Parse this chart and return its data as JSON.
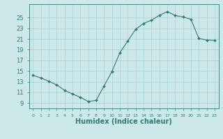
{
  "x": [
    0,
    1,
    2,
    3,
    4,
    5,
    6,
    7,
    8,
    9,
    10,
    11,
    12,
    13,
    14,
    15,
    16,
    17,
    18,
    19,
    20,
    21,
    22,
    23
  ],
  "y": [
    14.2,
    13.7,
    13.1,
    12.4,
    11.4,
    10.7,
    10.1,
    9.3,
    9.5,
    12.2,
    14.9,
    18.4,
    20.6,
    22.8,
    23.9,
    24.5,
    25.4,
    26.1,
    25.4,
    25.1,
    24.7,
    21.1,
    20.8,
    20.7
  ],
  "line_color": "#2e7d6e",
  "marker": "D",
  "marker_size": 2.0,
  "bg_color": "#cce8e8",
  "grid_color": "#aad0d0",
  "spine_color": "#2e7d6e",
  "font_color": "#2e7d6e",
  "xlabel": "Humidex (Indice chaleur)",
  "xlabel_fontsize": 7,
  "ylabel_ticks": [
    9,
    11,
    13,
    15,
    17,
    19,
    21,
    23,
    25
  ],
  "ytick_fontsize": 6,
  "xtick_fontsize": 4.5,
  "ylim": [
    8.0,
    27.5
  ],
  "xlim": [
    -0.5,
    23.5
  ],
  "xtick_labels": [
    "0",
    "1",
    "2",
    "3",
    "4",
    "5",
    "6",
    "7",
    "8",
    "9",
    "10",
    "11",
    "12",
    "13",
    "14",
    "15",
    "16",
    "17",
    "18",
    "19",
    "20",
    "21",
    "22",
    "23"
  ]
}
